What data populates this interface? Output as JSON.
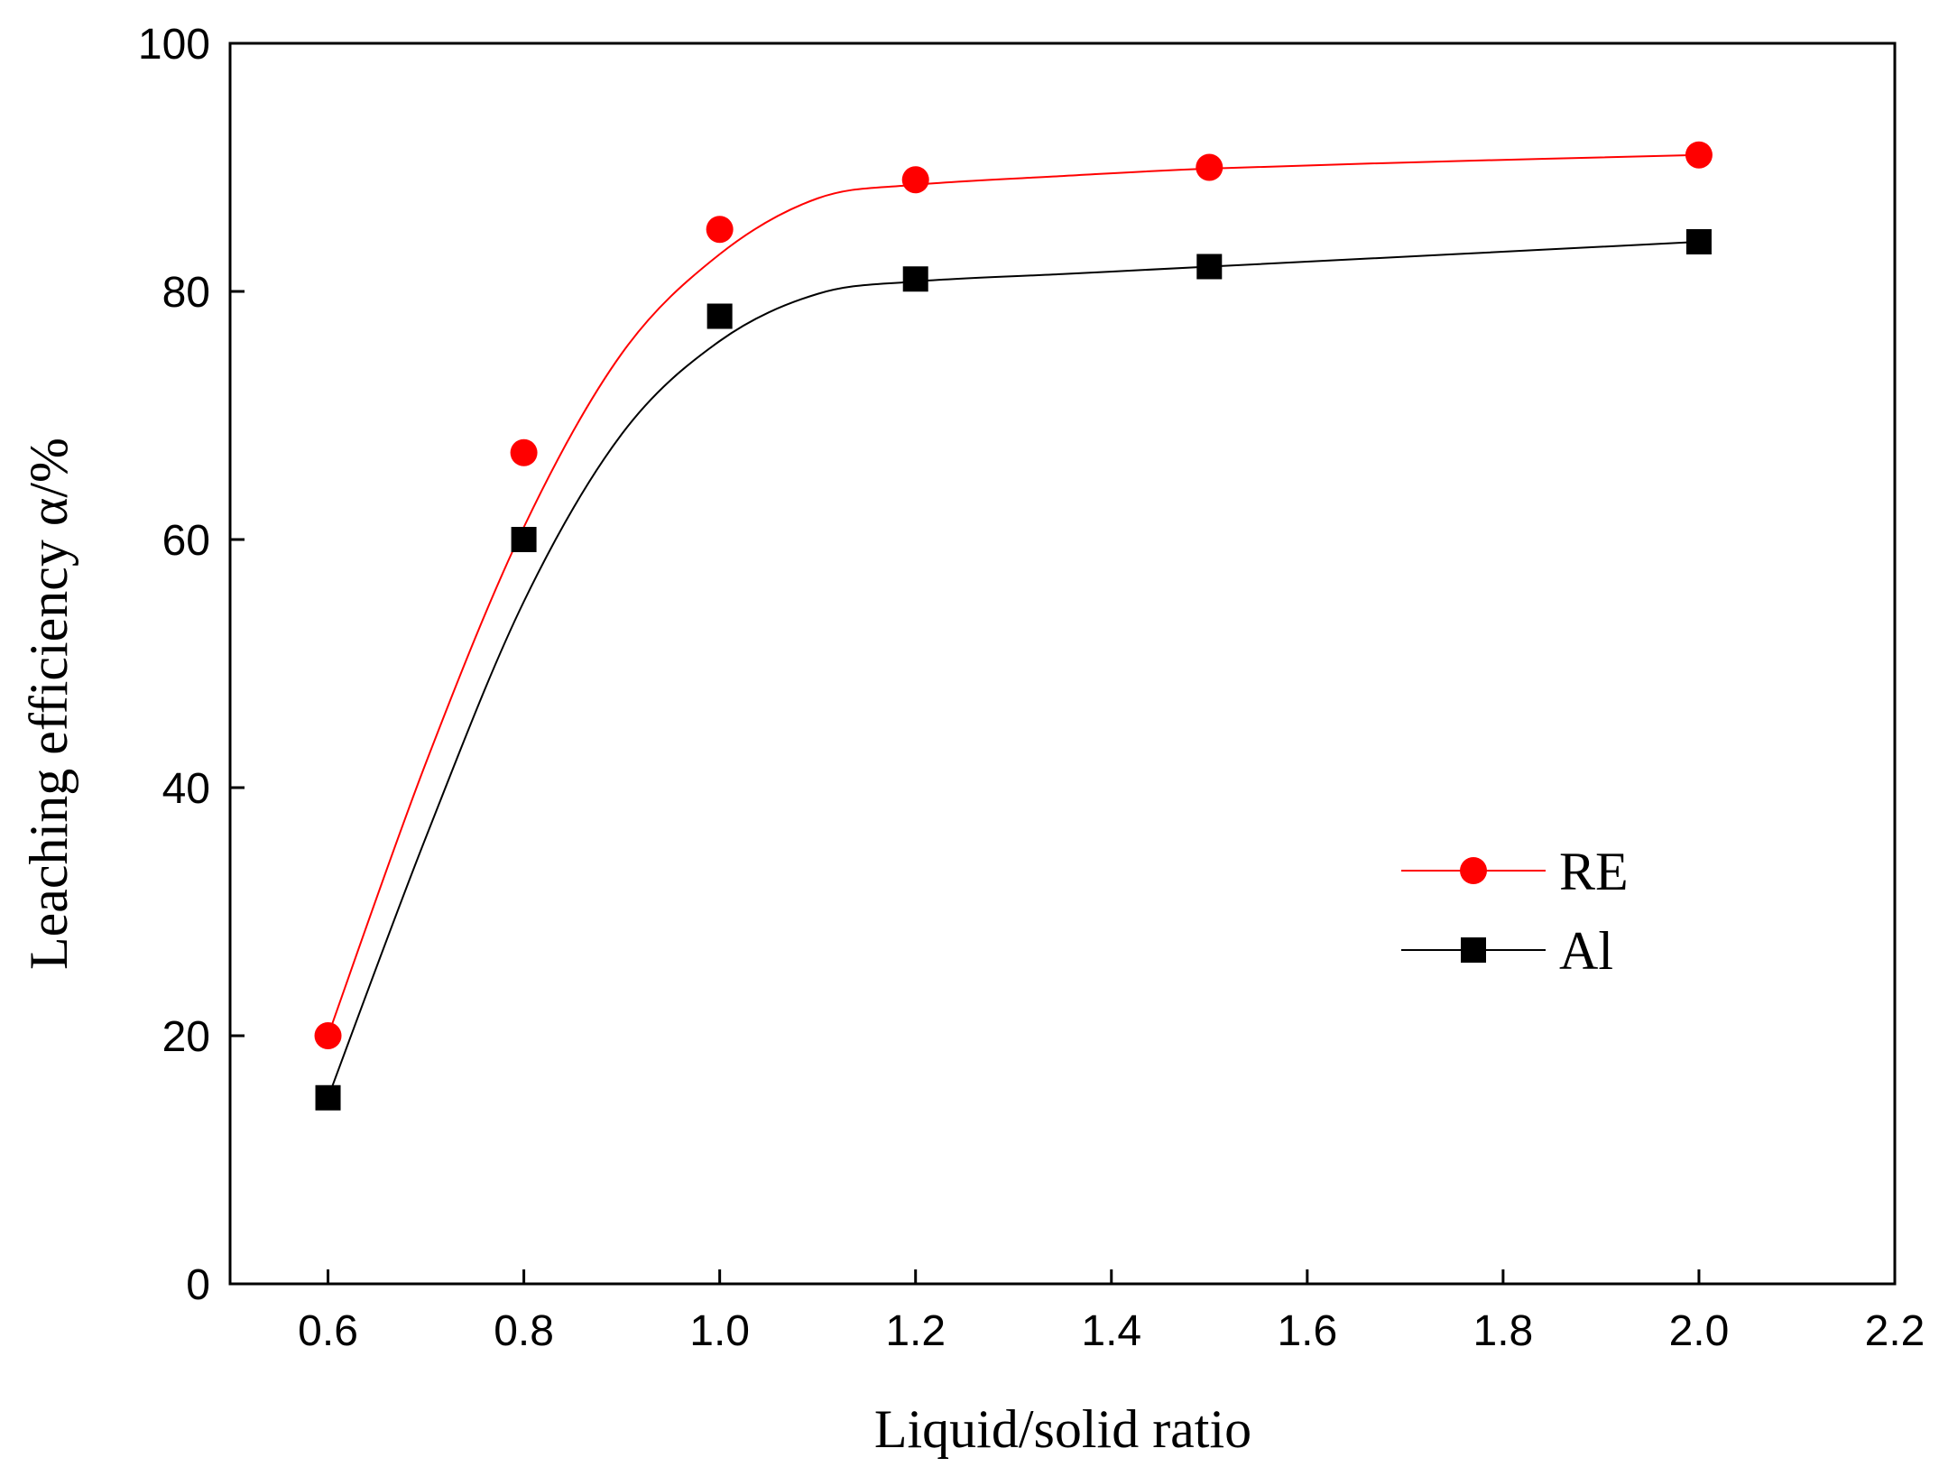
{
  "chart_data": {
    "type": "line",
    "title": "",
    "xlabel": "Liquid/solid ratio",
    "ylabel": "Leaching efficiency α/%",
    "xlim": [
      0.5,
      2.2
    ],
    "ylim": [
      0,
      100
    ],
    "x_ticks": [
      0.6,
      0.8,
      1.0,
      1.2,
      1.4,
      1.6,
      1.8,
      2.0,
      2.2
    ],
    "x_tick_labels": [
      "0.6",
      "0.8",
      "1.0",
      "1.2",
      "1.4",
      "1.6",
      "1.8",
      "2.0",
      "2.2"
    ],
    "y_ticks": [
      0,
      20,
      40,
      60,
      80,
      100
    ],
    "y_tick_labels": [
      "0",
      "20",
      "40",
      "60",
      "80",
      "100"
    ],
    "grid": false,
    "legend_position": "center-right",
    "series": [
      {
        "name": "RE",
        "color": "#ff0000",
        "marker": "circle",
        "x": [
          0.6,
          0.8,
          1.0,
          1.2,
          1.5,
          2.0
        ],
        "y": [
          20,
          67,
          85,
          89,
          90,
          91
        ],
        "fit_x": [
          0.6,
          0.7,
          0.8,
          0.9,
          1.0,
          1.1,
          1.2,
          1.35,
          1.5,
          1.75,
          2.0
        ],
        "fit_y": [
          20,
          42,
          61,
          75,
          83,
          87.5,
          88.6,
          89.3,
          89.9,
          90.5,
          91
        ]
      },
      {
        "name": "Al",
        "color": "#000000",
        "marker": "square",
        "x": [
          0.6,
          0.8,
          1.0,
          1.2,
          1.5,
          2.0
        ],
        "y": [
          15,
          60,
          78,
          81,
          82,
          84
        ],
        "fit_x": [
          0.6,
          0.7,
          0.8,
          0.9,
          1.0,
          1.1,
          1.2,
          1.35,
          1.5,
          1.75,
          2.0
        ],
        "fit_y": [
          15,
          36,
          55,
          68.5,
          76,
          79.8,
          80.8,
          81.4,
          82,
          83,
          84
        ]
      }
    ]
  }
}
